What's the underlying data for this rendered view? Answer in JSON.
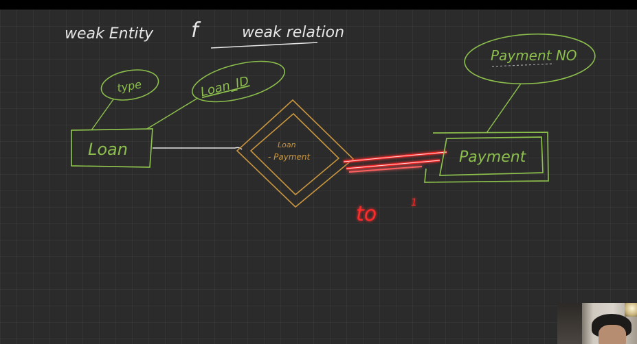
{
  "board": {
    "title_part1": "weak Entity",
    "title_connector": "f",
    "title_part2": "weak relation"
  },
  "entities": {
    "loan": "Loan",
    "payment": "Payment"
  },
  "attributes": {
    "type": "type",
    "loan_id": "Loan_ID",
    "payment_no": "Payment NO"
  },
  "relationship": {
    "line1": "Loan",
    "line2": "- Payment"
  },
  "annotation": {
    "partial_mark": "to",
    "cardinality_mark": "1"
  },
  "colors": {
    "board_bg": "#2b2b2b",
    "chalk_white": "#e6e6e6",
    "green": "#8cbf4c",
    "orange": "#c9953f",
    "red_highlight": "#ff2a2a"
  },
  "webcam": {
    "icon": "presenter-webcam"
  }
}
